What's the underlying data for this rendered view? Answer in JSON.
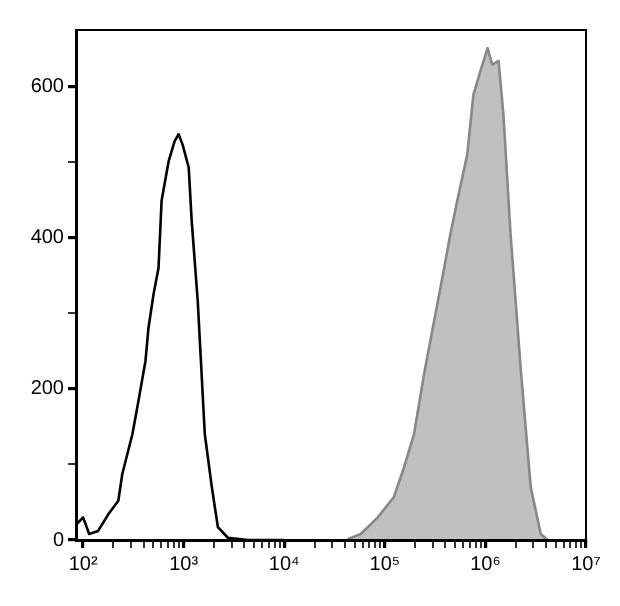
{
  "chart_data": {
    "type": "area",
    "log": "x",
    "grid": false,
    "legend": false,
    "marker": "none",
    "line_style": "solid",
    "xlim": [
      85,
      10000000
    ],
    "xticks": [
      {
        "value": 100,
        "label": "10²"
      },
      {
        "value": 200,
        "label": null
      },
      {
        "value": 300,
        "label": null
      },
      {
        "value": 400,
        "label": null
      },
      {
        "value": 500,
        "label": null
      },
      {
        "value": 600,
        "label": null
      },
      {
        "value": 700,
        "label": null
      },
      {
        "value": 800,
        "label": null
      },
      {
        "value": 900,
        "label": null
      },
      {
        "value": 1000,
        "label": "10³"
      },
      {
        "value": 2000,
        "label": null
      },
      {
        "value": 3000,
        "label": null
      },
      {
        "value": 4000,
        "label": null
      },
      {
        "value": 5000,
        "label": null
      },
      {
        "value": 6000,
        "label": null
      },
      {
        "value": 7000,
        "label": null
      },
      {
        "value": 8000,
        "label": null
      },
      {
        "value": 9000,
        "label": null
      },
      {
        "value": 10000,
        "label": "10⁴"
      },
      {
        "value": 20000,
        "label": null
      },
      {
        "value": 30000,
        "label": null
      },
      {
        "value": 40000,
        "label": null
      },
      {
        "value": 50000,
        "label": null
      },
      {
        "value": 60000,
        "label": null
      },
      {
        "value": 70000,
        "label": null
      },
      {
        "value": 80000,
        "label": null
      },
      {
        "value": 90000,
        "label": null
      },
      {
        "value": 100000,
        "label": "10⁵"
      },
      {
        "value": 200000,
        "label": null
      },
      {
        "value": 300000,
        "label": null
      },
      {
        "value": 400000,
        "label": null
      },
      {
        "value": 500000,
        "label": null
      },
      {
        "value": 600000,
        "label": null
      },
      {
        "value": 700000,
        "label": null
      },
      {
        "value": 800000,
        "label": null
      },
      {
        "value": 900000,
        "label": null
      },
      {
        "value": 1000000,
        "label": "10⁶"
      },
      {
        "value": 2000000,
        "label": null
      },
      {
        "value": 3000000,
        "label": null
      },
      {
        "value": 4000000,
        "label": null
      },
      {
        "value": 5000000,
        "label": null
      },
      {
        "value": 6000000,
        "label": null
      },
      {
        "value": 7000000,
        "label": null
      },
      {
        "value": 8000000,
        "label": null
      },
      {
        "value": 9000000,
        "label": null
      },
      {
        "value": 10000000,
        "label": "10⁷"
      }
    ],
    "ylim": [
      0,
      675
    ],
    "yticks": [
      0,
      {
        "value": 100,
        "label": null
      },
      200,
      {
        "value": 300,
        "label": null
      },
      400,
      {
        "value": 500,
        "label": null
      },
      600
    ],
    "series": [
      {
        "type": "area",
        "color": "#c0c0c0",
        "x": [
          42700,
          57500,
          85100,
          123000,
          155000,
          195000,
          245000,
          309000,
          389000,
          447000,
          525000,
          661000,
          759000,
          912000,
          1050000,
          1170000,
          1350000,
          1510000,
          1780000,
          2240000,
          2820000,
          3550000,
          4170000
        ],
        "values": [
          1,
          8,
          30,
          57,
          96,
          140,
          219,
          290,
          360,
          404,
          449,
          511,
          589,
          625,
          651,
          629,
          634,
          563,
          404,
          228,
          70,
          8,
          0
        ]
      },
      {
        "type": "line",
        "color": "#000000",
        "x": [
          85,
          100,
          115,
          141,
          178,
          224,
          245,
          309,
          355,
          417,
          447,
          501,
          562,
          603,
          708,
          813,
          891,
          977,
          1122,
          1202,
          1380,
          1622,
          1905,
          2188,
          2754,
          4365,
          10000
        ],
        "values": [
          20,
          30,
          8,
          12,
          34,
          52,
          87,
          140,
          184,
          237,
          281,
          325,
          360,
          449,
          501,
          528,
          537,
          523,
          493,
          422,
          316,
          140,
          70,
          17,
          3,
          0,
          0
        ]
      }
    ]
  }
}
